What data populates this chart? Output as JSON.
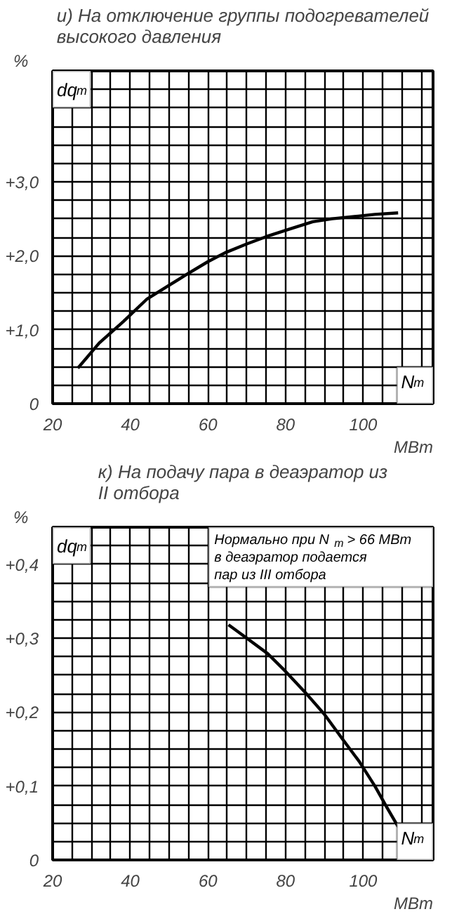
{
  "chart_data": [
    {
      "type": "line",
      "title": "и) На отключение группы подогревателей\nвысокого давления",
      "xlabel": "МВт",
      "ylabel": "%",
      "annotations": [
        "dq$_{т}$",
        "N$_{т}$"
      ],
      "series": [
        {
          "color": "#000000",
          "x": [
            26.5,
            32,
            38.2,
            44.2,
            50,
            54.3,
            60,
            64.4,
            70,
            75.1,
            81,
            87,
            92,
            97.7,
            103,
            109
          ],
          "values": [
            0.48,
            0.82,
            1.11,
            1.41,
            1.6,
            1.74,
            1.92,
            2.04,
            2.16,
            2.26,
            2.36,
            2.46,
            2.5,
            2.53,
            2.56,
            2.58
          ]
        }
      ],
      "xlim": [
        20,
        118
      ],
      "ylim": [
        0,
        4.5
      ],
      "xticks": [
        20,
        {
          "value": 25,
          "label": null
        },
        {
          "value": 30,
          "label": null
        },
        {
          "value": 35,
          "label": null
        },
        40,
        {
          "value": 45,
          "label": null
        },
        {
          "value": 50,
          "label": null
        },
        {
          "value": 55,
          "label": null
        },
        60,
        {
          "value": 65,
          "label": null
        },
        {
          "value": 70,
          "label": null
        },
        {
          "value": 75,
          "label": null
        },
        80,
        {
          "value": 85,
          "label": null
        },
        {
          "value": 90,
          "label": null
        },
        {
          "value": 95,
          "label": null
        },
        100,
        {
          "value": 105,
          "label": null
        },
        {
          "value": 110,
          "label": null
        },
        {
          "value": 115,
          "label": null
        }
      ],
      "yticks": [
        0,
        {
          "value": 0.25,
          "label": null
        },
        {
          "value": 0.5,
          "label": null
        },
        {
          "value": 0.75,
          "label": null
        },
        {
          "value": 1,
          "label": "+1,0"
        },
        {
          "value": 1.25,
          "label": null
        },
        {
          "value": 1.5,
          "label": null
        },
        {
          "value": 1.75,
          "label": null
        },
        {
          "value": 2,
          "label": "+2,0"
        },
        {
          "value": 2.25,
          "label": null
        },
        {
          "value": 2.5,
          "label": null
        },
        {
          "value": 2.75,
          "label": null
        },
        {
          "value": 3,
          "label": "+3,0"
        },
        {
          "value": 3.25,
          "label": null
        },
        {
          "value": 3.5,
          "label": null
        },
        {
          "value": 3.75,
          "label": null
        },
        {
          "value": 4,
          "label": null
        },
        {
          "value": 4.25,
          "label": null
        }
      ],
      "grid": true,
      "line_style": "solid",
      "marker": "none"
    },
    {
      "type": "line",
      "title": "к) На подачу пара в деаэратор из\nII отбора",
      "xlabel": "МВт",
      "ylabel": "%",
      "annotations": [
        "dq$_{т}$",
        "N$_{т}$",
        "Нормально при N$_{т}$ > 66 МВт\nв деаэратор подается\nпар из III отбора"
      ],
      "series": [
        {
          "color": "#000000",
          "x": [
            65.3,
            70,
            75.4,
            80,
            85,
            90,
            94.6,
            99,
            103,
            106,
            109
          ],
          "values": [
            0.318,
            0.3,
            0.279,
            0.255,
            0.227,
            0.197,
            0.164,
            0.133,
            0.1,
            0.072,
            0.045
          ]
        }
      ],
      "xlim": [
        20,
        118
      ],
      "ylim": [
        0,
        0.45
      ],
      "xticks": [
        20,
        {
          "value": 25,
          "label": null
        },
        {
          "value": 30,
          "label": null
        },
        {
          "value": 35,
          "label": null
        },
        40,
        {
          "value": 45,
          "label": null
        },
        {
          "value": 50,
          "label": null
        },
        {
          "value": 55,
          "label": null
        },
        60,
        {
          "value": 65,
          "label": null
        },
        {
          "value": 70,
          "label": null
        },
        {
          "value": 75,
          "label": null
        },
        80,
        {
          "value": 85,
          "label": null
        },
        {
          "value": 90,
          "label": null
        },
        {
          "value": 95,
          "label": null
        },
        100,
        {
          "value": 105,
          "label": null
        },
        {
          "value": 110,
          "label": null
        },
        {
          "value": 115,
          "label": null
        }
      ],
      "yticks": [
        0,
        {
          "value": 0.025,
          "label": null
        },
        {
          "value": 0.05,
          "label": null
        },
        {
          "value": 0.075,
          "label": null
        },
        {
          "value": 0.1,
          "label": "+0,1"
        },
        {
          "value": 0.125,
          "label": null
        },
        {
          "value": 0.15,
          "label": null
        },
        {
          "value": 0.175,
          "label": null
        },
        {
          "value": 0.2,
          "label": "+0,2"
        },
        {
          "value": 0.225,
          "label": null
        },
        {
          "value": 0.25,
          "label": null
        },
        {
          "value": 0.275,
          "label": null
        },
        {
          "value": 0.3,
          "label": "+0,3"
        },
        {
          "value": 0.325,
          "label": null
        },
        {
          "value": 0.35,
          "label": null
        },
        {
          "value": 0.375,
          "label": null
        },
        {
          "value": 0.4,
          "label": "+0,4"
        },
        {
          "value": 0.425,
          "label": null
        }
      ],
      "grid": true,
      "line_style": "solid",
      "marker": "none"
    }
  ]
}
